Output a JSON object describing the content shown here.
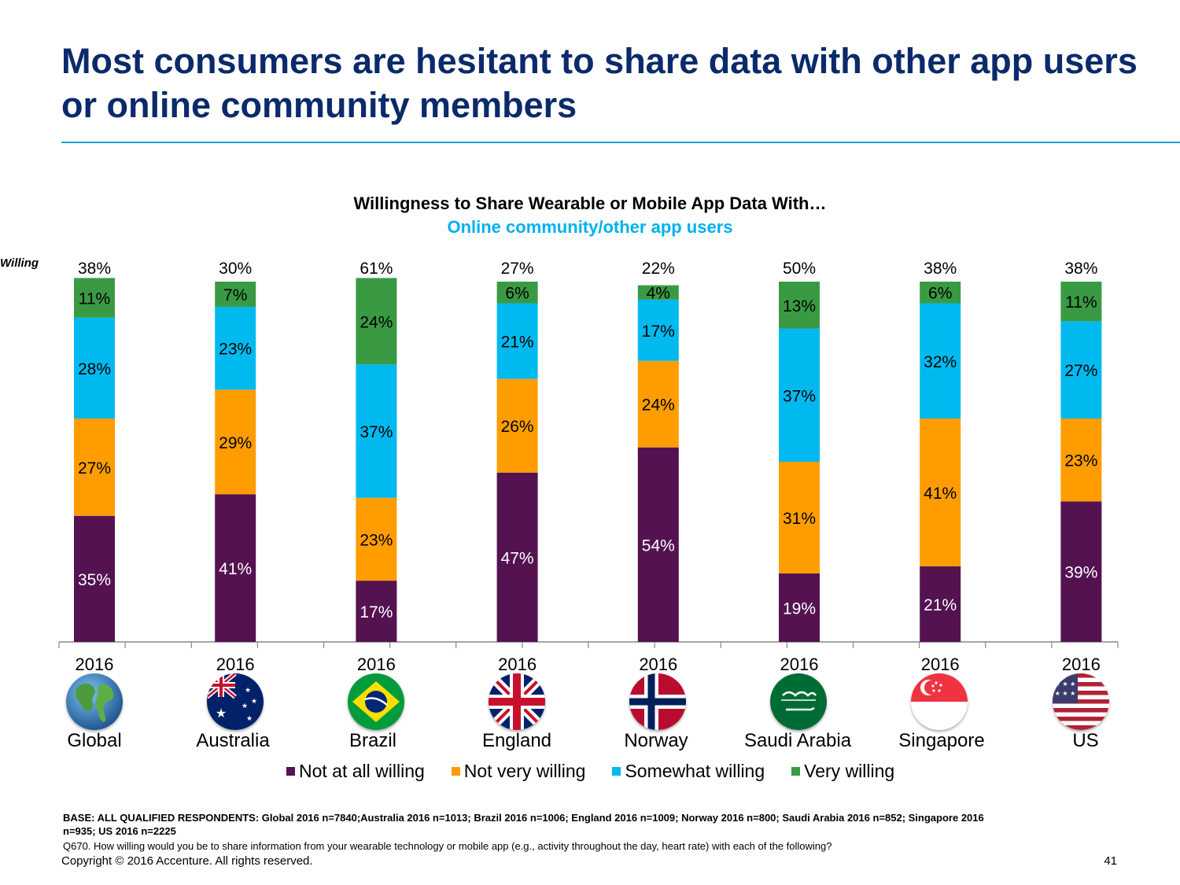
{
  "slide": {
    "title": "Most consumers are hesitant to share data with other app users or online community members",
    "base_note": "BASE: ALL QUALIFIED RESPONDENTS: Global 2016 n=7840;Australia 2016 n=1013; Brazil  2016 n=1006; England  2016 n=1009; Norway  2016 n=800; Saudi Arabia 2016 n=852; Singapore  2016 n=935; US 2016 n=2225",
    "question_note": "Q670.  How willing would you be to share information from your wearable technology or mobile app (e.g., activity throughout the day, heart rate) with each of the following?",
    "copyright": "Copyright © 2016 Accenture. All rights reserved.",
    "page_number": "41",
    "willing_label": "Willing"
  },
  "colors": {
    "title": "#0b2a6b",
    "rule": "#17a2d9",
    "subtitle": "#00b0f0"
  },
  "chart_data": {
    "type": "bar",
    "stacked": true,
    "title": "Willingness to Share Wearable or Mobile App Data With…",
    "subtitle": "Online community/other app users",
    "x_labels": [
      "2016",
      "2016",
      "2016",
      "2016",
      "2016",
      "2016",
      "2016",
      "2016"
    ],
    "countries": [
      "Global",
      "Australia",
      "Brazil",
      "England",
      "Norway",
      "Saudi Arabia",
      "Singapore",
      "US"
    ],
    "flags": [
      "globe-icon",
      "australia-flag-icon",
      "brazil-flag-icon",
      "england-flag-icon",
      "norway-flag-icon",
      "saudi-arabia-flag-icon",
      "singapore-flag-icon",
      "us-flag-icon"
    ],
    "totals_willing": [
      "38%",
      "30%",
      "61%",
      "27%",
      "22%",
      "50%",
      "38%",
      "38%"
    ],
    "series": [
      {
        "name": "Not at all willing",
        "color": "#541251",
        "label_color": "#ffffff",
        "values": [
          35,
          41,
          17,
          47,
          54,
          19,
          21,
          39
        ]
      },
      {
        "name": "Not very willing",
        "color": "#ff9d00",
        "label_color": "#000000",
        "values": [
          27,
          29,
          23,
          26,
          24,
          31,
          41,
          23
        ]
      },
      {
        "name": "Somewhat willing",
        "color": "#00b9ef",
        "label_color": "#000000",
        "values": [
          28,
          23,
          37,
          21,
          17,
          37,
          32,
          27
        ]
      },
      {
        "name": "Very willing",
        "color": "#3a9a44",
        "label_color": "#000000",
        "values": [
          11,
          7,
          24,
          6,
          4,
          13,
          6,
          11
        ]
      }
    ],
    "value_suffix": "%",
    "ylim": [
      0,
      100
    ],
    "grid": false,
    "legend_position": "bottom"
  }
}
